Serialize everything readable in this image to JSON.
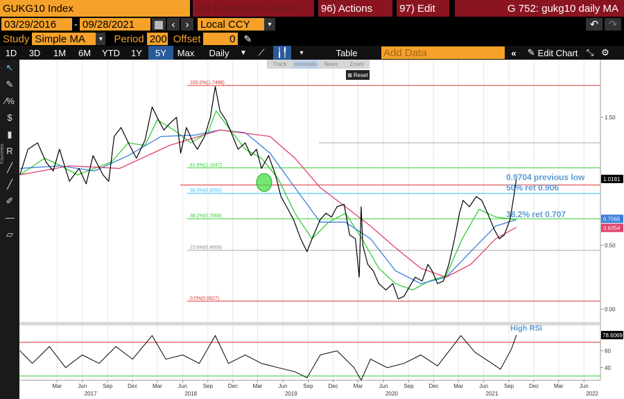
{
  "header": {
    "ticker": "GUKG10 Index",
    "suggested": "94) Suggested Charts",
    "actions": "96) Actions",
    "edit": "97) Edit",
    "title": "G 752: gukg10 daily MA"
  },
  "range": {
    "start": "03/29/2016",
    "sep": "-",
    "end": "09/28/2021",
    "currency": "Local CCY"
  },
  "study": {
    "label": "Study",
    "value": "Simple MA",
    "period_label": "Period",
    "period": "200",
    "offset_label": "Offset",
    "offset": "0"
  },
  "toolbar": {
    "periods": [
      "1D",
      "3D",
      "1M",
      "6M",
      "YTD",
      "1Y",
      "5Y",
      "Max"
    ],
    "selected": "5Y",
    "frequency": "Daily",
    "table": "Table",
    "add_data_placeholder": "Add Data",
    "edit_chart": "Edit Chart"
  },
  "popup": {
    "items": [
      "Track",
      "Annotate",
      "News",
      "Zoom"
    ],
    "reset": "Reset"
  },
  "side_label": "Favorites",
  "colors": {
    "price": "#000000",
    "ma_short": "#33cc33",
    "ma_mid": "#3a7fd8",
    "ma_long": "#e0406a",
    "fib_red": "#e03030",
    "fib_green": "#33cc33",
    "fib_cyan": "#33bbff",
    "annotation_blue": "#5b9bd5"
  },
  "chart_data": {
    "type": "line",
    "title": "",
    "xlabel": "",
    "ylabel": "",
    "ylim": [
      -0.1,
      1.95
    ],
    "y_ticks": [
      0.0,
      0.5,
      1.0,
      1.5
    ],
    "y_tick_labels": [
      "0.00",
      "0.50",
      "1.00",
      "1.50"
    ],
    "xlim": [
      "2016-10-15",
      "2022-07-31"
    ],
    "x_ticks": [
      {
        "date": "2017-03-01",
        "label": "Mar"
      },
      {
        "date": "2017-06-01",
        "label": "Jun"
      },
      {
        "date": "2017-09-01",
        "label": "Sep"
      },
      {
        "date": "2017-12-01",
        "label": "Dec"
      },
      {
        "date": "2018-03-01",
        "label": "Mar"
      },
      {
        "date": "2018-06-01",
        "label": "Jun"
      },
      {
        "date": "2018-09-01",
        "label": "Sep"
      },
      {
        "date": "2018-12-01",
        "label": "Dec"
      },
      {
        "date": "2019-03-01",
        "label": "Mar"
      },
      {
        "date": "2019-06-01",
        "label": "Jun"
      },
      {
        "date": "2019-09-01",
        "label": "Sep"
      },
      {
        "date": "2019-12-01",
        "label": "Dec"
      },
      {
        "date": "2020-03-01",
        "label": "Mar"
      },
      {
        "date": "2020-06-01",
        "label": "Jun"
      },
      {
        "date": "2020-09-01",
        "label": "Sep"
      },
      {
        "date": "2020-12-01",
        "label": "Dec"
      },
      {
        "date": "2021-03-01",
        "label": "Mar"
      },
      {
        "date": "2021-06-01",
        "label": "Jun"
      },
      {
        "date": "2021-09-01",
        "label": "Sep"
      },
      {
        "date": "2021-12-01",
        "label": "Dec"
      },
      {
        "date": "2022-03-01",
        "label": "Mar"
      },
      {
        "date": "2022-06-01",
        "label": "Jun"
      }
    ],
    "year_labels": [
      {
        "date": "2017-07-01",
        "label": "2017"
      },
      {
        "date": "2018-07-01",
        "label": "2018"
      },
      {
        "date": "2019-07-01",
        "label": "2019"
      },
      {
        "date": "2020-07-01",
        "label": "2020"
      },
      {
        "date": "2021-07-01",
        "label": "2021"
      },
      {
        "date": "2022-07-01",
        "label": "2022"
      }
    ],
    "series": [
      {
        "key": "price",
        "points": [
          [
            "2016-10-17",
            1.05
          ],
          [
            "2016-11-15",
            1.25
          ],
          [
            "2016-12-20",
            1.3
          ],
          [
            "2017-01-20",
            1.15
          ],
          [
            "2017-02-15",
            1.08
          ],
          [
            "2017-03-10",
            1.25
          ],
          [
            "2017-04-15",
            1.0
          ],
          [
            "2017-05-20",
            1.1
          ],
          [
            "2017-06-15",
            0.98
          ],
          [
            "2017-07-10",
            1.2
          ],
          [
            "2017-08-15",
            1.05
          ],
          [
            "2017-09-05",
            1.0
          ],
          [
            "2017-09-25",
            1.35
          ],
          [
            "2017-10-20",
            1.42
          ],
          [
            "2017-11-20",
            1.28
          ],
          [
            "2017-12-15",
            1.18
          ],
          [
            "2018-01-15",
            1.32
          ],
          [
            "2018-02-10",
            1.58
          ],
          [
            "2018-03-05",
            1.48
          ],
          [
            "2018-03-25",
            1.4
          ],
          [
            "2018-04-15",
            1.45
          ],
          [
            "2018-05-10",
            1.5
          ],
          [
            "2018-05-25",
            1.22
          ],
          [
            "2018-06-15",
            1.42
          ],
          [
            "2018-07-10",
            1.3
          ],
          [
            "2018-07-25",
            1.25
          ],
          [
            "2018-08-20",
            1.35
          ],
          [
            "2018-09-10",
            1.5
          ],
          [
            "2018-09-28",
            1.74
          ],
          [
            "2018-10-15",
            1.55
          ],
          [
            "2018-11-05",
            1.48
          ],
          [
            "2018-11-25",
            1.38
          ],
          [
            "2018-12-20",
            1.25
          ],
          [
            "2019-01-15",
            1.3
          ],
          [
            "2019-02-05",
            1.2
          ],
          [
            "2019-02-25",
            1.25
          ],
          [
            "2019-03-15",
            1.1
          ],
          [
            "2019-04-10",
            1.2
          ],
          [
            "2019-05-05",
            1.05
          ],
          [
            "2019-05-25",
            0.88
          ],
          [
            "2019-06-15",
            0.8
          ],
          [
            "2019-07-10",
            0.7
          ],
          [
            "2019-08-05",
            0.55
          ],
          [
            "2019-08-28",
            0.45
          ],
          [
            "2019-09-15",
            0.55
          ],
          [
            "2019-10-15",
            0.7
          ],
          [
            "2019-11-05",
            0.75
          ],
          [
            "2019-11-25",
            0.72
          ],
          [
            "2019-12-15",
            0.8
          ],
          [
            "2020-01-10",
            0.82
          ],
          [
            "2020-01-30",
            0.58
          ],
          [
            "2020-02-20",
            0.55
          ],
          [
            "2020-03-05",
            0.25
          ],
          [
            "2020-03-12",
            0.8
          ],
          [
            "2020-03-18",
            0.5
          ],
          [
            "2020-04-05",
            0.35
          ],
          [
            "2020-04-25",
            0.3
          ],
          [
            "2020-05-15",
            0.2
          ],
          [
            "2020-06-10",
            0.15
          ],
          [
            "2020-07-05",
            0.2
          ],
          [
            "2020-07-25",
            0.08
          ],
          [
            "2020-08-15",
            0.1
          ],
          [
            "2020-09-05",
            0.18
          ],
          [
            "2020-09-25",
            0.25
          ],
          [
            "2020-10-20",
            0.22
          ],
          [
            "2020-11-10",
            0.35
          ],
          [
            "2020-11-25",
            0.3
          ],
          [
            "2020-12-15",
            0.2
          ],
          [
            "2021-01-05",
            0.22
          ],
          [
            "2021-01-25",
            0.35
          ],
          [
            "2021-02-15",
            0.55
          ],
          [
            "2021-03-05",
            0.75
          ],
          [
            "2021-03-18",
            0.85
          ],
          [
            "2021-04-10",
            0.8
          ],
          [
            "2021-05-05",
            0.88
          ],
          [
            "2021-05-25",
            0.85
          ],
          [
            "2021-06-15",
            0.75
          ],
          [
            "2021-07-10",
            0.62
          ],
          [
            "2021-07-28",
            0.55
          ],
          [
            "2021-08-15",
            0.58
          ],
          [
            "2021-09-05",
            0.7
          ],
          [
            "2021-09-20",
            0.9
          ],
          [
            "2021-09-28",
            1.02
          ]
        ]
      },
      {
        "key": "ma_short",
        "points": [
          [
            "2016-10-17",
            1.05
          ],
          [
            "2017-01-15",
            1.18
          ],
          [
            "2017-03-15",
            1.12
          ],
          [
            "2017-05-15",
            1.05
          ],
          [
            "2017-07-15",
            1.1
          ],
          [
            "2017-09-15",
            1.15
          ],
          [
            "2017-11-15",
            1.3
          ],
          [
            "2018-01-15",
            1.28
          ],
          [
            "2018-03-01",
            1.48
          ],
          [
            "2018-05-01",
            1.4
          ],
          [
            "2018-07-01",
            1.3
          ],
          [
            "2018-09-01",
            1.38
          ],
          [
            "2018-10-01",
            1.55
          ],
          [
            "2018-11-15",
            1.42
          ],
          [
            "2019-01-15",
            1.25
          ],
          [
            "2019-03-15",
            1.18
          ],
          [
            "2019-05-15",
            1.02
          ],
          [
            "2019-07-15",
            0.75
          ],
          [
            "2019-09-15",
            0.55
          ],
          [
            "2019-11-15",
            0.68
          ],
          [
            "2020-01-15",
            0.75
          ],
          [
            "2020-03-15",
            0.55
          ],
          [
            "2020-05-15",
            0.32
          ],
          [
            "2020-07-15",
            0.2
          ],
          [
            "2020-09-15",
            0.15
          ],
          [
            "2020-11-15",
            0.22
          ],
          [
            "2021-01-15",
            0.26
          ],
          [
            "2021-03-15",
            0.55
          ],
          [
            "2021-05-15",
            0.78
          ],
          [
            "2021-07-15",
            0.72
          ],
          [
            "2021-09-28",
            0.7
          ]
        ]
      },
      {
        "key": "ma_mid",
        "points": [
          [
            "2016-10-17",
            1.1
          ],
          [
            "2017-03-15",
            1.12
          ],
          [
            "2017-07-15",
            1.08
          ],
          [
            "2017-11-15",
            1.2
          ],
          [
            "2018-03-15",
            1.35
          ],
          [
            "2018-07-15",
            1.36
          ],
          [
            "2018-10-15",
            1.4
          ],
          [
            "2019-01-15",
            1.38
          ],
          [
            "2019-04-15",
            1.22
          ],
          [
            "2019-07-15",
            0.95
          ],
          [
            "2019-10-15",
            0.68
          ],
          [
            "2020-01-15",
            0.68
          ],
          [
            "2020-04-15",
            0.55
          ],
          [
            "2020-07-15",
            0.3
          ],
          [
            "2020-10-15",
            0.2
          ],
          [
            "2021-01-15",
            0.25
          ],
          [
            "2021-04-15",
            0.45
          ],
          [
            "2021-07-15",
            0.65
          ],
          [
            "2021-09-28",
            0.7
          ]
        ]
      },
      {
        "key": "ma_long",
        "points": [
          [
            "2016-10-17",
            1.05
          ],
          [
            "2017-04-15",
            1.12
          ],
          [
            "2017-10-15",
            1.1
          ],
          [
            "2018-04-15",
            1.28
          ],
          [
            "2018-10-15",
            1.4
          ],
          [
            "2019-04-15",
            1.35
          ],
          [
            "2019-07-15",
            1.18
          ],
          [
            "2019-10-15",
            0.95
          ],
          [
            "2020-01-15",
            0.8
          ],
          [
            "2020-04-15",
            0.65
          ],
          [
            "2020-07-15",
            0.48
          ],
          [
            "2020-10-15",
            0.32
          ],
          [
            "2021-01-15",
            0.25
          ],
          [
            "2021-04-15",
            0.35
          ],
          [
            "2021-07-15",
            0.55
          ],
          [
            "2021-09-28",
            0.64
          ]
        ]
      }
    ],
    "fib_levels": [
      {
        "value": 1.7488,
        "label": "100.0%(1.7488)",
        "color": "fib_red"
      },
      {
        "value": 1.1047,
        "label": "61.8%(1.1047)",
        "color": "fib_green"
      },
      {
        "value": 0.905,
        "label": "50.0%(0.9050)",
        "color": "fib_cyan"
      },
      {
        "value": 0.7068,
        "label": "38.2%(0.7068)",
        "color": "fib_green"
      },
      {
        "value": 0.4606,
        "label": "23.6%(0.4606)",
        "color": "fib_gray"
      },
      {
        "value": 0.0627,
        "label": "0.0%(0.0627)",
        "color": "fib_red"
      }
    ],
    "extra_lines": [
      {
        "value": 0.9704,
        "color": "fib_red"
      },
      {
        "value": 1.3,
        "color": "fib_gray"
      }
    ],
    "annotations": [
      {
        "text": "0.9704 previous low",
        "value": 1.03
      },
      {
        "text": "50% ret 0.906",
        "value": 0.95
      },
      {
        "text": "38.2% ret 0.707",
        "value": 0.74
      }
    ],
    "highlight_circle": {
      "date": "2019-03-25",
      "value": 0.99
    },
    "last_value_labels": [
      {
        "text": "1.0181",
        "value": 1.0181,
        "bg": "#000000",
        "fg": "#ffffff"
      },
      {
        "text": "0.7065",
        "value": 0.7065,
        "bg": "#3a7fd8",
        "fg": "#ffffff"
      },
      {
        "text": "0.6354",
        "value": 0.6354,
        "bg": "#e0406a",
        "fg": "#ffffff"
      }
    ],
    "rsi": {
      "ylim": [
        25,
        90
      ],
      "ticks": [
        40,
        60
      ],
      "upper": 70,
      "lower": 30,
      "last_label": "78.6069",
      "annotation": "High RSI",
      "points": [
        [
          "2016-10-17",
          60
        ],
        [
          "2016-12-01",
          45
        ],
        [
          "2017-02-01",
          65
        ],
        [
          "2017-04-01",
          40
        ],
        [
          "2017-06-01",
          55
        ],
        [
          "2017-08-01",
          45
        ],
        [
          "2017-10-01",
          65
        ],
        [
          "2017-12-01",
          50
        ],
        [
          "2018-02-10",
          78
        ],
        [
          "2018-04-01",
          50
        ],
        [
          "2018-06-01",
          55
        ],
        [
          "2018-08-01",
          45
        ],
        [
          "2018-09-28",
          78
        ],
        [
          "2018-11-15",
          45
        ],
        [
          "2019-01-15",
          55
        ],
        [
          "2019-03-15",
          45
        ],
        [
          "2019-05-15",
          40
        ],
        [
          "2019-07-15",
          35
        ],
        [
          "2019-08-28",
          28
        ],
        [
          "2019-10-15",
          55
        ],
        [
          "2019-12-15",
          60
        ],
        [
          "2020-02-15",
          40
        ],
        [
          "2020-03-12",
          25
        ],
        [
          "2020-04-15",
          50
        ],
        [
          "2020-06-15",
          40
        ],
        [
          "2020-08-15",
          45
        ],
        [
          "2020-10-15",
          55
        ],
        [
          "2020-12-15",
          42
        ],
        [
          "2021-02-15",
          68
        ],
        [
          "2021-03-10",
          78
        ],
        [
          "2021-05-01",
          58
        ],
        [
          "2021-07-01",
          45
        ],
        [
          "2021-08-01",
          38
        ],
        [
          "2021-09-10",
          62
        ],
        [
          "2021-09-28",
          78.6
        ]
      ]
    }
  }
}
